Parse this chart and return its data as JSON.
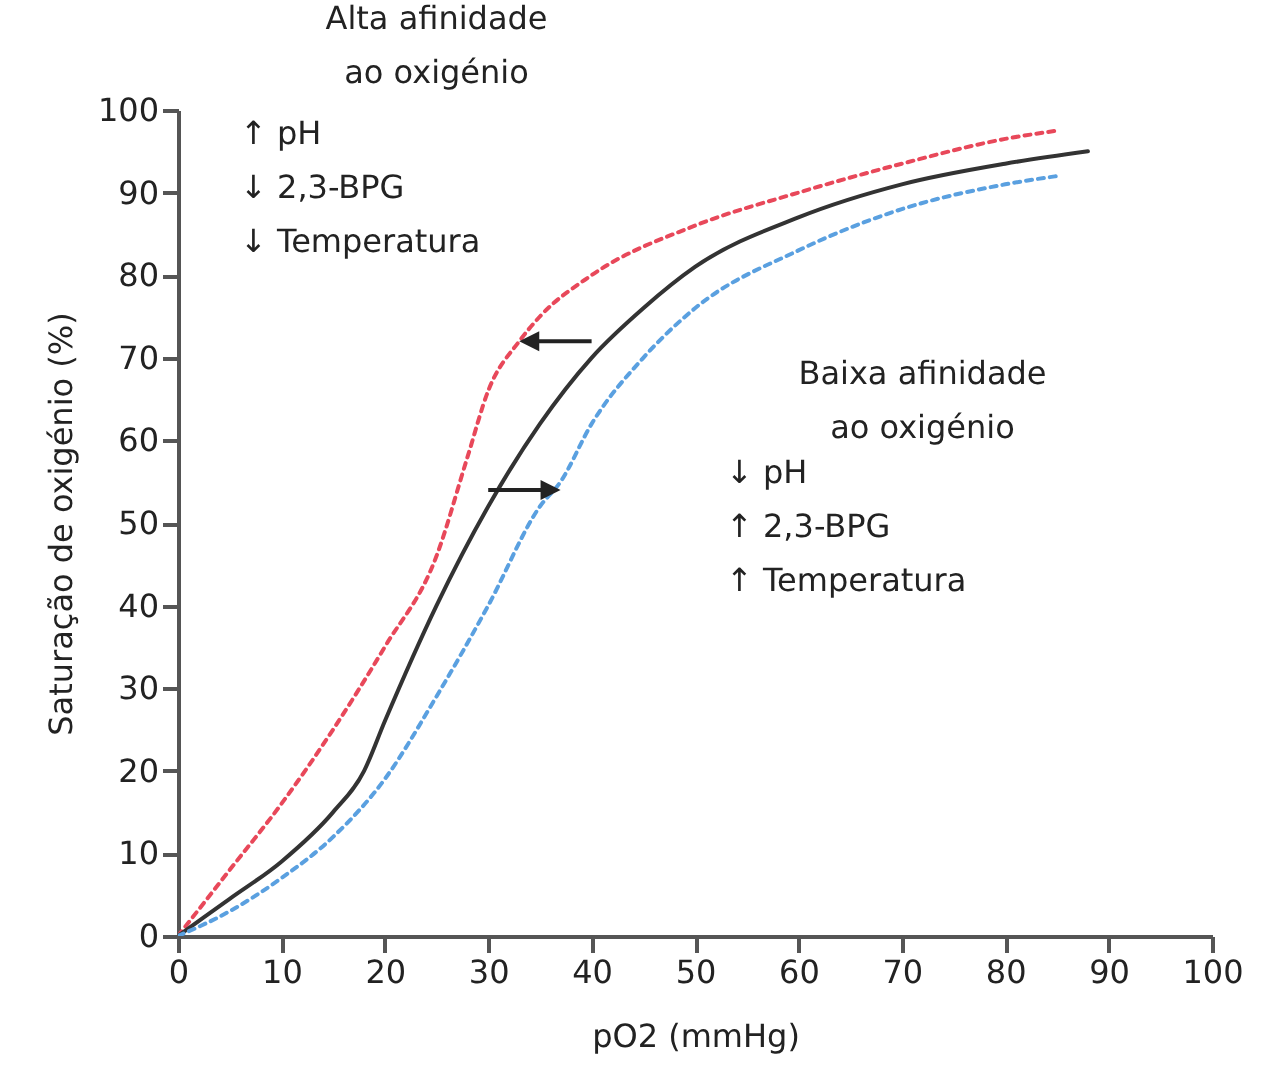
{
  "chart_data": {
    "type": "line",
    "xlabel": "pO2 (mmHg)",
    "ylabel": "Saturação de oxigénio (%)",
    "xlim": [
      0,
      100
    ],
    "xticks": [
      0,
      10,
      20,
      30,
      40,
      50,
      60,
      70,
      80,
      90,
      100
    ],
    "ylim": [
      0,
      100
    ],
    "yticks": [
      0,
      10,
      20,
      30,
      40,
      50,
      60,
      70,
      80,
      90,
      100
    ],
    "grid": false,
    "annotations": [
      "Alta afinidade\nao oxigénio",
      "↑ pH\n↓ 2,3-BPG\n↓ Temperatura",
      "Baixa afinidade\nao oxigénio",
      "↓ pH\n↑ 2,3-BPG\n↑ Temperatura"
    ],
    "series": [
      {
        "color": "#e8485a",
        "line_style": "dotted",
        "x": [
          0,
          5,
          10,
          15,
          20,
          25,
          28,
          30,
          33,
          35,
          40,
          50,
          60,
          70,
          80,
          85
        ],
        "values": [
          0,
          8,
          16,
          25,
          35,
          46,
          58,
          66,
          72,
          75,
          80,
          86,
          90,
          93.5,
          96.5,
          97.5
        ]
      },
      {
        "color": "#333333",
        "line_style": "solid",
        "x": [
          0,
          5,
          10,
          15,
          18,
          20,
          25,
          30,
          35,
          40,
          45,
          50,
          60,
          70,
          80,
          88
        ],
        "values": [
          0,
          4.5,
          9,
          15,
          20,
          26,
          40,
          52,
          62,
          70,
          76,
          81,
          87,
          91,
          93.5,
          95
        ]
      },
      {
        "color": "#5aa0e0",
        "line_style": "dotted",
        "x": [
          0,
          5,
          10,
          15,
          20,
          25,
          30,
          35,
          37,
          40,
          45,
          50,
          60,
          70,
          80,
          85
        ],
        "values": [
          0,
          3,
          7,
          12,
          19,
          29,
          40,
          52,
          55,
          62,
          70,
          76,
          83,
          88,
          91,
          92
        ]
      }
    ]
  }
}
